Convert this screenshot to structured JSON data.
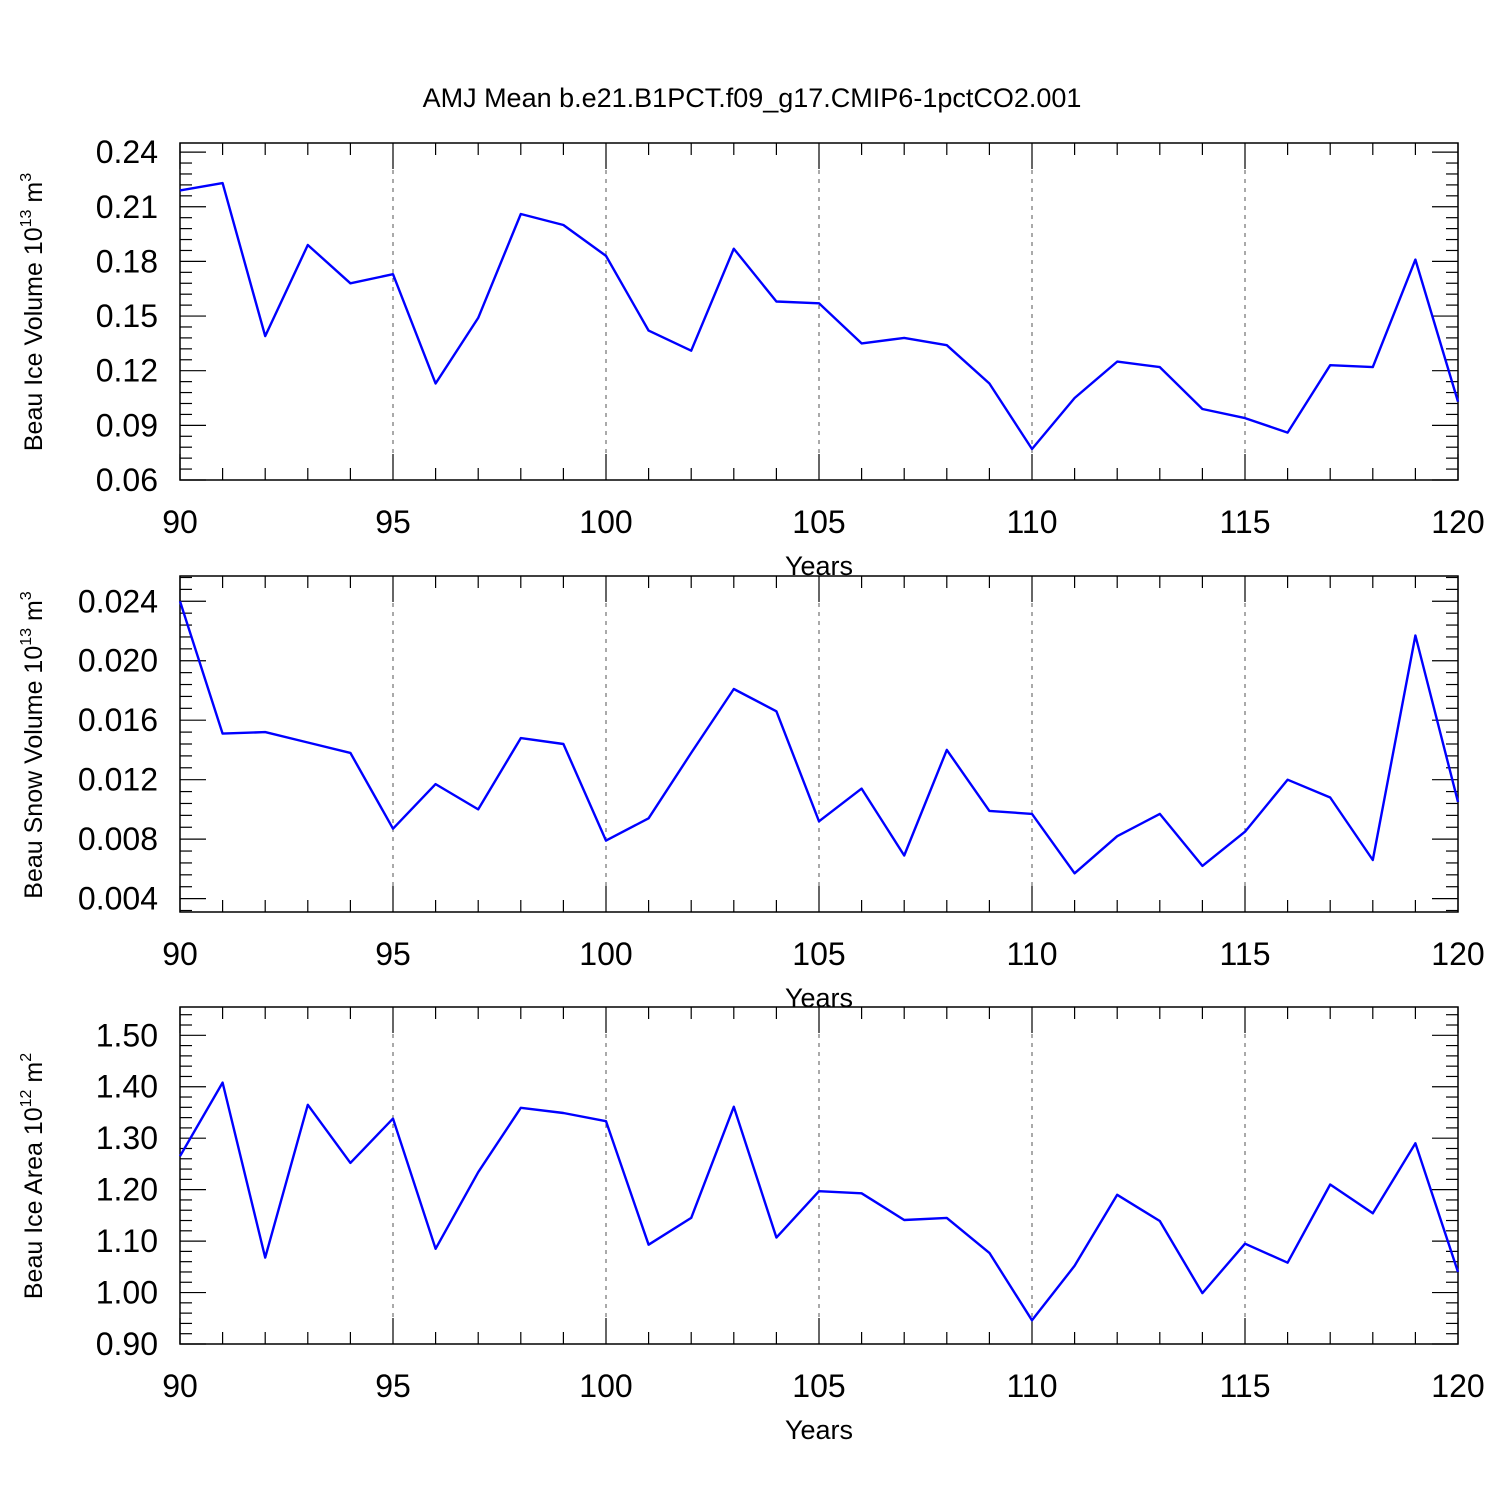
{
  "figure": {
    "title": "AMJ Mean b.e21.B1PCT.f09_g17.CMIP6-1pctCO2.001",
    "line_color": "#0000ff"
  },
  "chart_data": [
    {
      "type": "line",
      "title": "",
      "xlabel": "Years",
      "ylabel": {
        "main": "Beau Ice Volume 10",
        "exp": "13",
        "unit": " m",
        "unit_exp": "3"
      },
      "xlim": [
        90,
        120
      ],
      "ylim": [
        0.06,
        0.245
      ],
      "xticks": [
        90,
        95,
        100,
        105,
        110,
        115,
        120
      ],
      "xtick_labels": [
        "90",
        "95",
        "100",
        "105",
        "110",
        "115",
        "120"
      ],
      "yticks": [
        0.06,
        0.09,
        0.12,
        0.15,
        0.18,
        0.21,
        0.24
      ],
      "ytick_labels": [
        "0.06",
        "0.09",
        "0.12",
        "0.15",
        "0.18",
        "0.21",
        "0.24"
      ],
      "grid": "vertical dashed at major x ticks",
      "x": [
        90,
        91,
        92,
        93,
        94,
        95,
        96,
        97,
        98,
        99,
        100,
        101,
        102,
        103,
        104,
        105,
        106,
        107,
        108,
        109,
        110,
        111,
        112,
        113,
        114,
        115,
        116,
        117,
        118,
        119,
        120
      ],
      "series": [
        {
          "values": [
            0.219,
            0.223,
            0.139,
            0.189,
            0.168,
            0.173,
            0.113,
            0.149,
            0.206,
            0.2,
            0.183,
            0.142,
            0.131,
            0.187,
            0.158,
            0.157,
            0.135,
            0.138,
            0.134,
            0.113,
            0.077,
            0.105,
            0.125,
            0.122,
            0.099,
            0.094,
            0.086,
            0.123,
            0.122,
            0.181,
            0.103
          ]
        }
      ]
    },
    {
      "type": "line",
      "title": "",
      "xlabel": "Years",
      "ylabel": {
        "main": "Beau Snow Volume 10",
        "exp": "13",
        "unit": " m",
        "unit_exp": "3"
      },
      "xlim": [
        90,
        120
      ],
      "ylim": [
        0.0031,
        0.0257
      ],
      "xticks": [
        90,
        95,
        100,
        105,
        110,
        115,
        120
      ],
      "xtick_labels": [
        "90",
        "95",
        "100",
        "105",
        "110",
        "115",
        "120"
      ],
      "yticks": [
        0.004,
        0.008,
        0.012,
        0.016,
        0.02,
        0.024
      ],
      "ytick_labels": [
        "0.004",
        "0.008",
        "0.012",
        "0.016",
        "0.020",
        "0.024"
      ],
      "grid": "vertical dashed at major x ticks",
      "x": [
        90,
        91,
        92,
        93,
        94,
        95,
        96,
        97,
        98,
        99,
        100,
        101,
        102,
        103,
        104,
        105,
        106,
        107,
        108,
        109,
        110,
        111,
        112,
        113,
        114,
        115,
        116,
        117,
        118,
        119,
        120
      ],
      "series": [
        {
          "values": [
            0.024,
            0.0151,
            0.0152,
            0.0145,
            0.0138,
            0.0087,
            0.0117,
            0.01,
            0.0148,
            0.0144,
            0.0079,
            0.0094,
            0.0138,
            0.0181,
            0.0166,
            0.0092,
            0.0114,
            0.0069,
            0.014,
            0.0099,
            0.0097,
            0.0057,
            0.0082,
            0.0097,
            0.0062,
            0.0085,
            0.012,
            0.0108,
            0.0066,
            0.0217,
            0.0105
          ]
        }
      ]
    },
    {
      "type": "line",
      "title": "",
      "xlabel": "Years",
      "ylabel": {
        "main": "Beau Ice Area 10",
        "exp": "12",
        "unit": " m",
        "unit_exp": "2"
      },
      "xlim": [
        90,
        120
      ],
      "ylim": [
        0.9,
        1.555
      ],
      "xticks": [
        90,
        95,
        100,
        105,
        110,
        115,
        120
      ],
      "xtick_labels": [
        "90",
        "95",
        "100",
        "105",
        "110",
        "115",
        "120"
      ],
      "yticks": [
        0.9,
        1.0,
        1.1,
        1.2,
        1.3,
        1.4,
        1.5
      ],
      "ytick_labels": [
        "0.90",
        "1.00",
        "1.10",
        "1.20",
        "1.30",
        "1.40",
        "1.50"
      ],
      "grid": "vertical dashed at major x ticks",
      "x": [
        90,
        91,
        92,
        93,
        94,
        95,
        96,
        97,
        98,
        99,
        100,
        101,
        102,
        103,
        104,
        105,
        106,
        107,
        108,
        109,
        110,
        111,
        112,
        113,
        114,
        115,
        116,
        117,
        118,
        119,
        120
      ],
      "series": [
        {
          "values": [
            1.265,
            1.408,
            1.068,
            1.365,
            1.252,
            1.338,
            1.085,
            1.234,
            1.359,
            1.349,
            1.333,
            1.093,
            1.145,
            1.361,
            1.107,
            1.197,
            1.193,
            1.141,
            1.145,
            1.077,
            0.946,
            1.052,
            1.19,
            1.139,
            0.999,
            1.095,
            1.058,
            1.21,
            1.154,
            1.29,
            1.04
          ]
        }
      ]
    }
  ]
}
